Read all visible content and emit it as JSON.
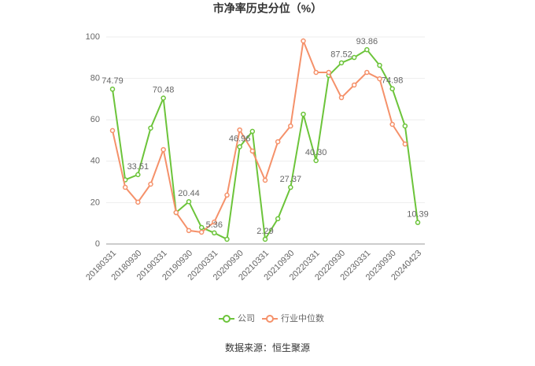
{
  "chart_data": {
    "type": "line",
    "title": "市净率历史分位（%）",
    "source": "数据来源：恒生聚源",
    "categories": [
      "20180331",
      null,
      "20180930",
      null,
      "20190331",
      null,
      "20190930",
      null,
      "20200331",
      null,
      "20200930",
      null,
      "20210331",
      null,
      "20210930",
      null,
      "20220331",
      null,
      "20220930",
      null,
      "20230331",
      null,
      "20230930",
      null,
      "20240423"
    ],
    "series": [
      {
        "name": "公司",
        "color": "#6cc43a",
        "values": [
          74.79,
          31,
          33.51,
          56,
          70.48,
          15.2,
          20.44,
          8,
          5.36,
          2.3,
          46.96,
          54.4,
          2.29,
          12.2,
          27.37,
          62.7,
          40.3,
          81.4,
          87.52,
          90.1,
          93.86,
          86.3,
          74.98,
          57,
          10.39
        ],
        "value_labels": [
          "74.79",
          null,
          "33.51",
          null,
          "70.48",
          null,
          "20.44",
          null,
          "5.36",
          null,
          "46.96",
          null,
          "2.29",
          null,
          "27.37",
          null,
          "40.30",
          null,
          "87.52",
          null,
          "93.86",
          null,
          "74.98",
          null,
          "10.39"
        ]
      },
      {
        "name": "行业中位数",
        "color": "#f5916a",
        "values": [
          54.8,
          27.4,
          20.2,
          28.9,
          45.6,
          15.2,
          6.5,
          5.7,
          10.6,
          23.6,
          55.1,
          44.9,
          30.8,
          49.4,
          57,
          98.1,
          82.9,
          82.9,
          70.7,
          76.8,
          82.9,
          79.8,
          57.8,
          48.3,
          null
        ]
      }
    ],
    "ylim": [
      0,
      100
    ],
    "yticks": [
      0,
      20,
      40,
      60,
      80,
      100
    ],
    "grid": true,
    "legend": "bottom"
  }
}
